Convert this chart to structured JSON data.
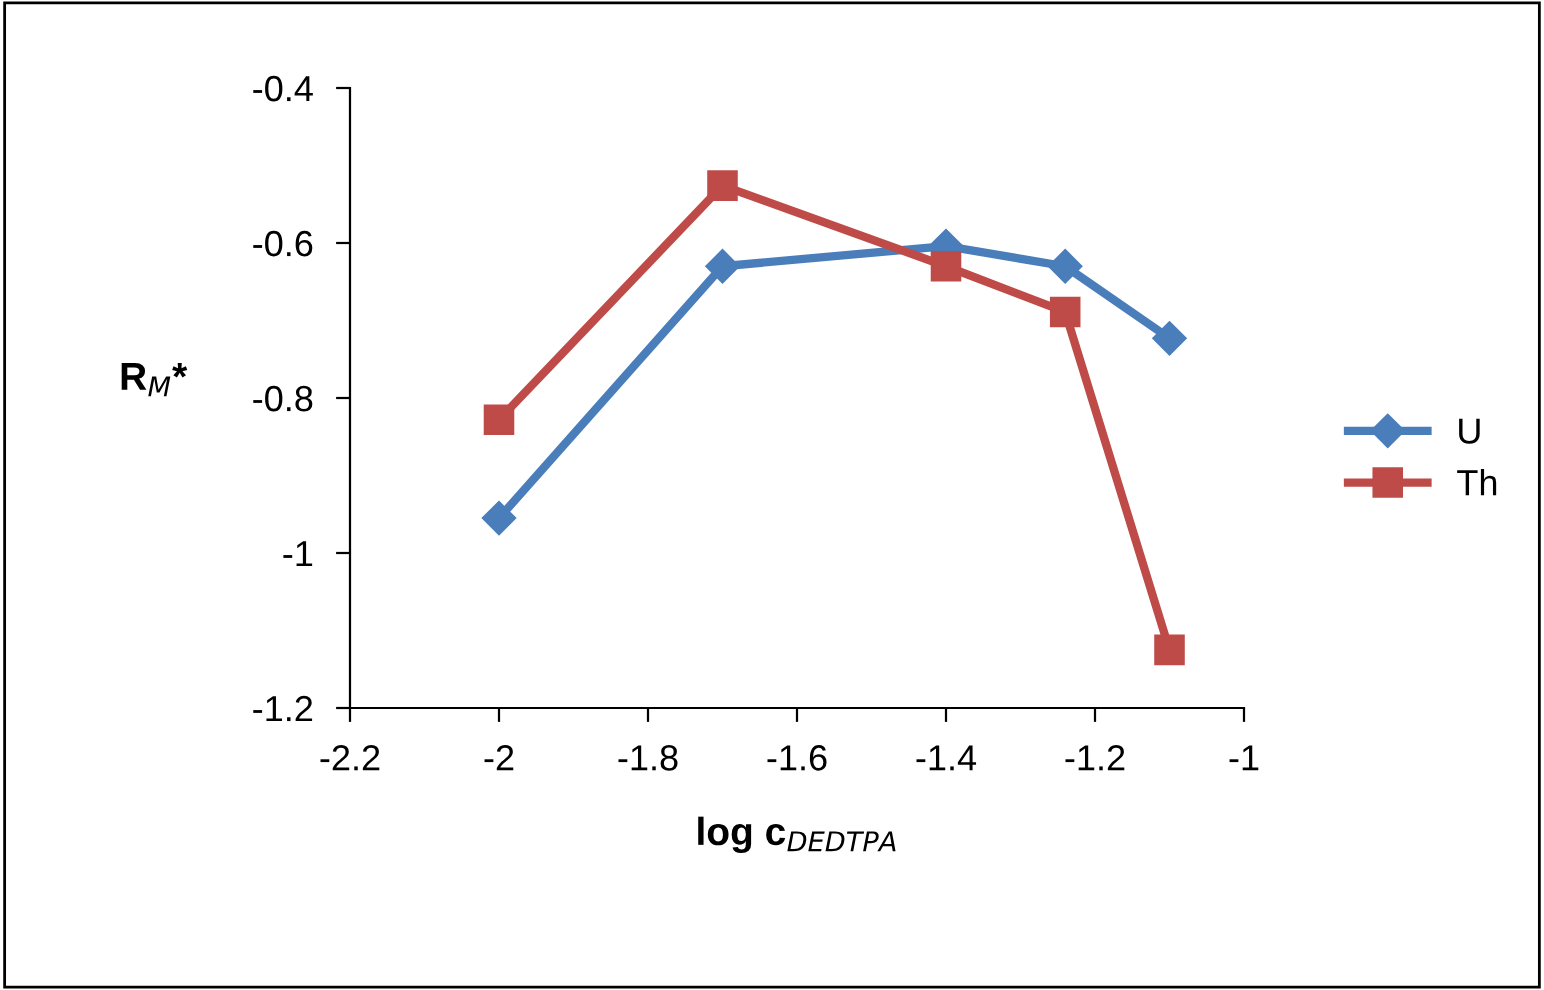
{
  "chart_data": {
    "type": "line",
    "xlabel": "log c$_{DEDTPA}$",
    "ylabel": "R$_{M}$*",
    "xlim": [
      -2.2,
      -1
    ],
    "xticks": [
      -2.2,
      -2,
      -1.8,
      -1.6,
      -1.4,
      -1.2,
      -1
    ],
    "ylim": [
      -1.2,
      -0.4
    ],
    "yticks": [
      -1.2,
      -1,
      -0.8,
      -0.6,
      -0.4
    ],
    "grid": false,
    "legend": "right",
    "line_style": "solid",
    "series": [
      {
        "name": "U",
        "color": "#4a7ebb",
        "marker": "diamond",
        "x": [
          -2,
          -1.7,
          -1.4,
          -1.24,
          -1.1
        ],
        "values": [
          -0.955,
          -0.63,
          -0.604,
          -0.63,
          -0.723
        ]
      },
      {
        "name": "Th",
        "color": "#be4b48",
        "marker": "square",
        "x": [
          -2,
          -1.7,
          -1.4,
          -1.24,
          -1.1
        ],
        "values": [
          -0.828,
          -0.526,
          -0.63,
          -0.689,
          -1.125
        ]
      }
    ]
  }
}
